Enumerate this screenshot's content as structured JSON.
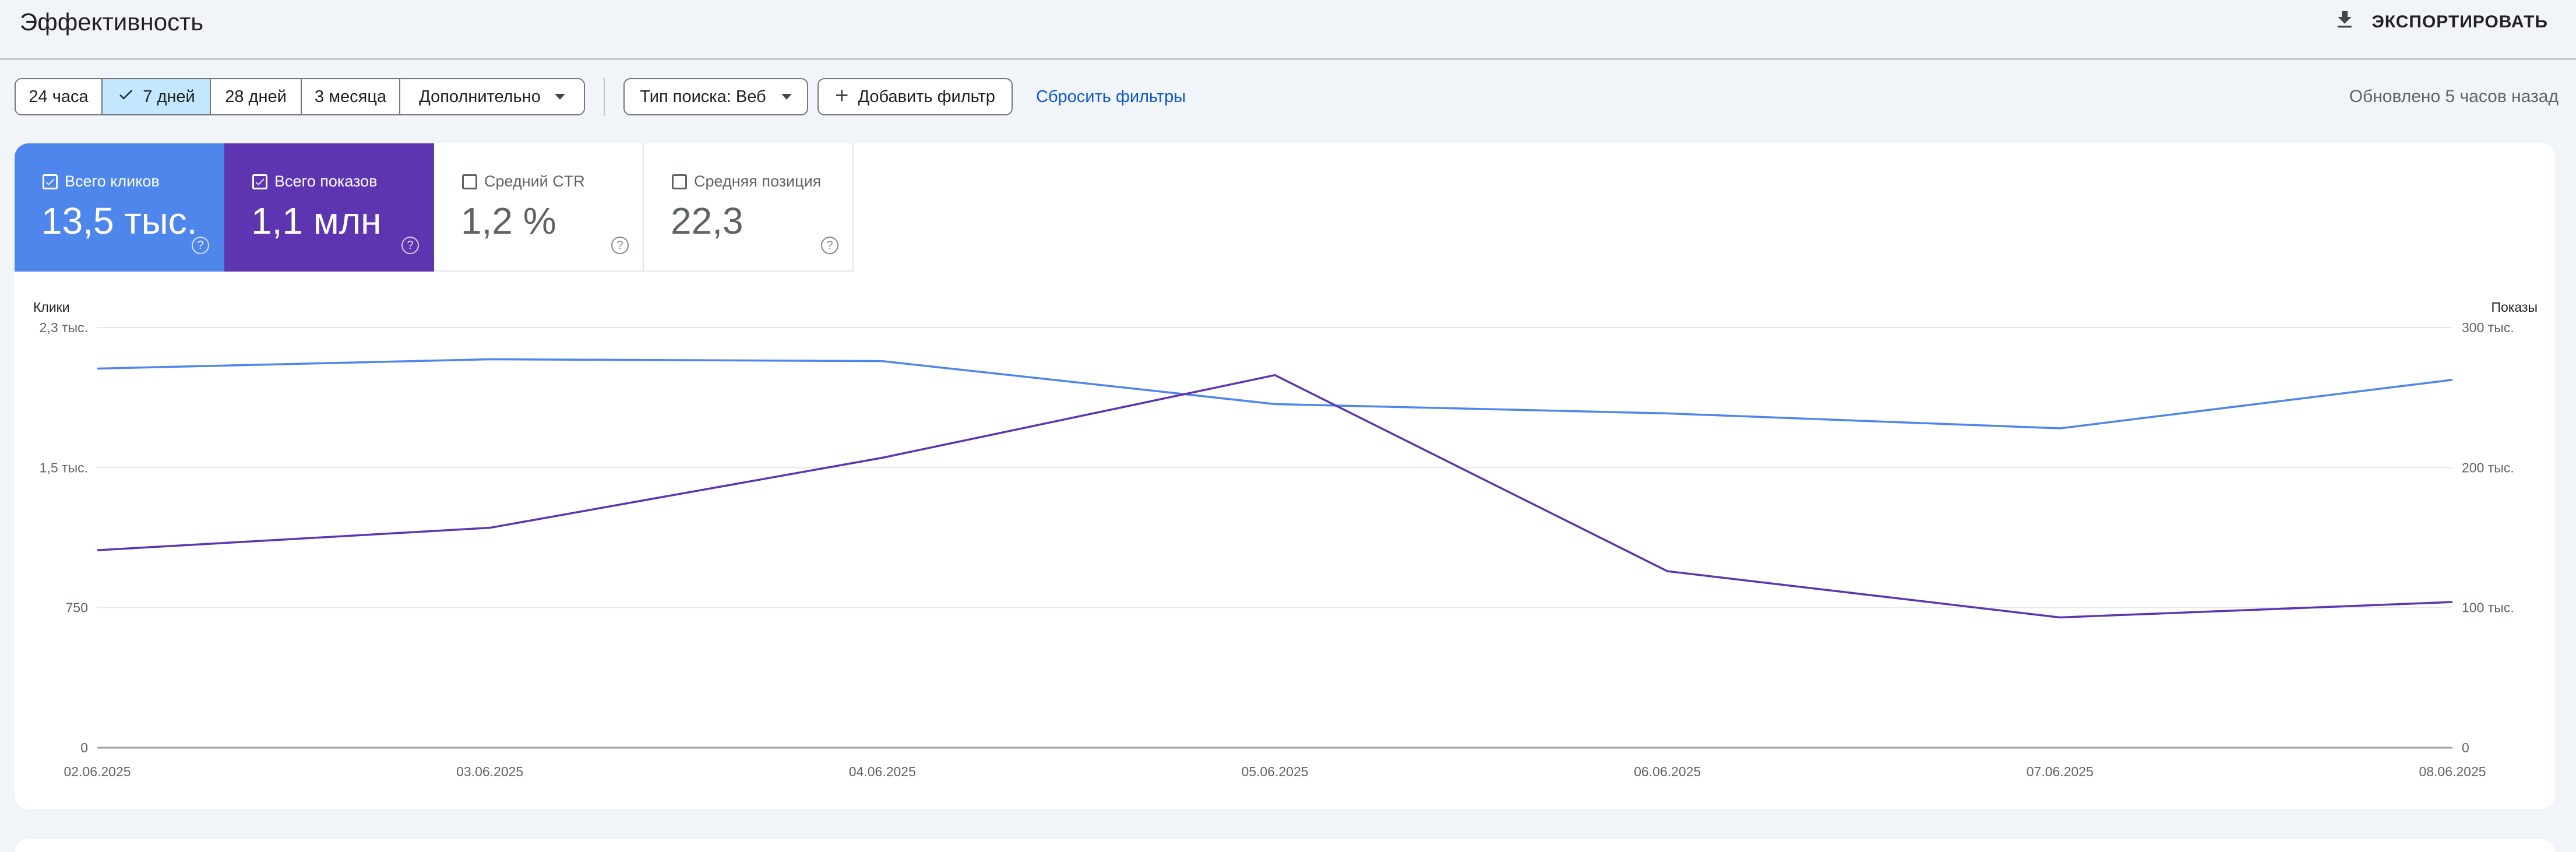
{
  "header": {
    "title": "Эффективность",
    "export_label": "ЭКСПОРТИРОВАТЬ"
  },
  "toolbar": {
    "ranges": [
      "24 часа",
      "7 дней",
      "28 дней",
      "3 месяца"
    ],
    "active_range": "7 дней",
    "more_label": "Дополнительно",
    "search_type_label": "Тип поиска: Веб",
    "add_filter_label": "Добавить фильтр",
    "reset_label": "Сбросить фильтры",
    "updated_text": "Обновлено 5 часов назад"
  },
  "metrics": [
    {
      "label": "Всего кликов",
      "value": "13,5 тыс.",
      "checked": true,
      "color": "#4f86ec"
    },
    {
      "label": "Всего показов",
      "value": "1,1 млн",
      "checked": true,
      "color": "#5e35b1"
    },
    {
      "label": "Средний CTR",
      "value": "1,2 %",
      "checked": false
    },
    {
      "label": "Средняя позиция",
      "value": "22,3",
      "checked": false
    }
  ],
  "colors": {
    "clicks": "#4f86ec",
    "impressions": "#5e35b1",
    "accent_link": "#0b57d0",
    "active_segment": "#c2e7ff"
  },
  "chart_data": {
    "type": "line",
    "x": [
      "02.06.2025",
      "03.06.2025",
      "04.06.2025",
      "05.06.2025",
      "06.06.2025",
      "07.06.2025",
      "08.06.2025"
    ],
    "y_left": {
      "label": "Клики",
      "ticks": [
        0,
        750,
        1500,
        2250
      ],
      "tick_labels": [
        "0",
        "750",
        "1,5 тыс.",
        "2,3 тыс."
      ],
      "range": [
        0,
        2250
      ]
    },
    "y_right": {
      "label": "Показы",
      "ticks": [
        0,
        100000,
        200000,
        300000
      ],
      "tick_labels": [
        "0",
        "100 тыс.",
        "200 тыс.",
        "300 тыс."
      ],
      "range": [
        0,
        300000
      ]
    },
    "series": [
      {
        "name": "Всего кликов",
        "axis": "left",
        "color": "#4f86ec",
        "values": [
          2030,
          2080,
          2070,
          1840,
          1790,
          1710,
          1970
        ]
      },
      {
        "name": "Всего показов",
        "axis": "right",
        "color": "#5e35b1",
        "values": [
          141000,
          157000,
          207000,
          266000,
          126000,
          93000,
          104000
        ]
      }
    ],
    "grid": true,
    "legend": "metric-cards-top"
  }
}
